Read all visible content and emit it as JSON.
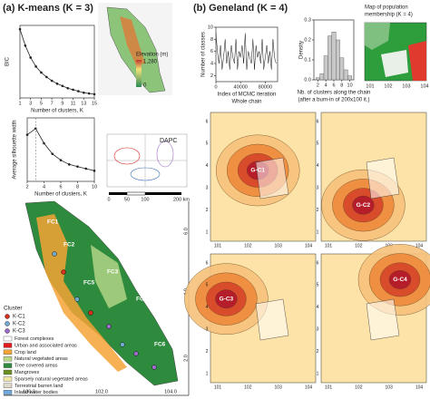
{
  "panels": {
    "a": {
      "title": "(a) K-means (K = 3)"
    },
    "b": {
      "title": "(b) Geneland (K = 4)"
    }
  },
  "chart_data": [
    {
      "type": "line",
      "x": [
        1,
        2,
        3,
        4,
        5,
        6,
        7,
        8,
        9,
        10,
        11,
        12,
        13,
        14,
        15
      ],
      "values": [
        100,
        78,
        62,
        50,
        42,
        36,
        31,
        27,
        24,
        21,
        19,
        17,
        15,
        14,
        13
      ],
      "xlim": [
        1,
        15
      ],
      "xticks": [
        1,
        3,
        5,
        7,
        9,
        11,
        13,
        15
      ],
      "ylim": [
        8,
        105
      ],
      "x_label": [
        "Number of clusters, K"
      ],
      "y_label": "BIC",
      "color": "#222",
      "markers": true
    },
    {
      "type": "line",
      "x": [
        2,
        3,
        4,
        5,
        6,
        7,
        8,
        9,
        10
      ],
      "values": [
        0.42,
        0.45,
        0.38,
        0.33,
        0.3,
        0.28,
        0.27,
        0.26,
        0.25
      ],
      "xlim": [
        2,
        10
      ],
      "xticks": [
        2,
        4,
        6,
        8,
        10
      ],
      "ylim": [
        0.2,
        0.5
      ],
      "vline": 3,
      "x_label": [
        "Number of clusters, K"
      ],
      "y_label": "Average silhouette width",
      "color": "#222",
      "markers": true
    },
    {
      "type": "line",
      "x": [
        0,
        2500,
        5000,
        7500,
        10000,
        12500,
        15000,
        17500,
        20000,
        22500,
        25000,
        27500,
        30000,
        32500,
        35000,
        37500,
        40000,
        42500,
        45000,
        47500,
        50000,
        52500,
        55000,
        57500,
        60000,
        62500,
        65000,
        67500,
        70000,
        72500,
        75000,
        77500,
        80000,
        82500,
        85000,
        87500,
        90000,
        92500,
        95000,
        97500
      ],
      "values": [
        9,
        6,
        4,
        7,
        3,
        5,
        8,
        4,
        6,
        3,
        7,
        5,
        4,
        8,
        3,
        6,
        5,
        7,
        4,
        9,
        3,
        6,
        5,
        4,
        8,
        3,
        7,
        5,
        6,
        4,
        8,
        3,
        5,
        7,
        4,
        6,
        3,
        8,
        5,
        4
      ],
      "xlim": [
        0,
        100000
      ],
      "xticks": [
        0,
        40000,
        80000
      ],
      "ylim": [
        1,
        10
      ],
      "yticks": [
        2,
        4,
        6,
        8,
        10
      ],
      "x_label": [
        "Index of MCMC iteration",
        "Whole chain"
      ],
      "y_label": "Number of classes",
      "color": "#111",
      "markers": false
    },
    {
      "type": "histogram",
      "bins": [
        1.5,
        2.5,
        3.5,
        4.5,
        5.5,
        6.5,
        7.5,
        8.5,
        9.5,
        10.5
      ],
      "values": [
        0.01,
        0.03,
        0.12,
        0.22,
        0.24,
        0.2,
        0.11,
        0.05,
        0.02
      ],
      "xlim": [
        1,
        11
      ],
      "xticks": [
        2,
        4,
        6,
        8,
        10
      ],
      "ylim": [
        0,
        0.3
      ],
      "yticks": [
        {
          "value": 0,
          "label": "0.0"
        },
        {
          "value": 0.1,
          "label": "0.1"
        },
        {
          "value": 0.2,
          "label": "0.2"
        },
        {
          "value": 0.3,
          "label": "0.3"
        }
      ],
      "x_label": [
        "Nb. of clusters along the chain",
        "(after a burn-in of 200x100 it.)"
      ],
      "y_label": "Density",
      "color": "#c8c8c8"
    }
  ],
  "elevation": {
    "title": "Elevation (m)",
    "max": "1,280",
    "min": "0"
  },
  "dapc": {
    "title": "DAPC"
  },
  "scale_bar": [
    "0",
    "50",
    "100",
    "200 km"
  ],
  "kmeans_map": {
    "labels": [
      "FC1",
      "FC2",
      "FC3",
      "FC4",
      "FC5",
      "FC6"
    ],
    "lat_ticks": [
      "6.0",
      "4.0",
      "2.0"
    ],
    "lon_ticks": [
      "100.0",
      "102.0",
      "104.0"
    ]
  },
  "legend": {
    "title": "Cluster",
    "clusters": [
      {
        "name": "K-C1",
        "color": "#d7301f"
      },
      {
        "name": "K-C2",
        "color": "#74a9cf"
      },
      {
        "name": "K-C3",
        "color": "#9e6bc8"
      }
    ],
    "classes": [
      {
        "name": "Forest complexes",
        "color": "#ffffff"
      },
      {
        "name": "Urban and associated areas",
        "color": "#e31a1c"
      },
      {
        "name": "Crop land",
        "color": "#f4a336"
      },
      {
        "name": "Natural vegetated areas",
        "color": "#b9d989"
      },
      {
        "name": "Tree covered areas",
        "color": "#2e8b3d"
      },
      {
        "name": "Mangroves",
        "color": "#6b8e23"
      },
      {
        "name": "Sparsely natural vegetated areas",
        "color": "#f1e5a8"
      },
      {
        "name": "Terrestrial barren land",
        "color": "#e0d8c8"
      },
      {
        "name": "Inland water bodies",
        "color": "#6fa8dc"
      }
    ]
  },
  "membership": {
    "title": [
      "Map of population",
      "membership (K = 4)"
    ],
    "lon_ticks": [
      "101",
      "102",
      "103",
      "104"
    ]
  },
  "geneland_maps": {
    "labels": [
      "G-C1",
      "G-C2",
      "G-C3",
      "G-C4"
    ],
    "lon_ticks": [
      "101",
      "102",
      "103",
      "104"
    ],
    "lat_ticks": [
      "1",
      "2",
      "3",
      "4",
      "5",
      "6"
    ]
  }
}
